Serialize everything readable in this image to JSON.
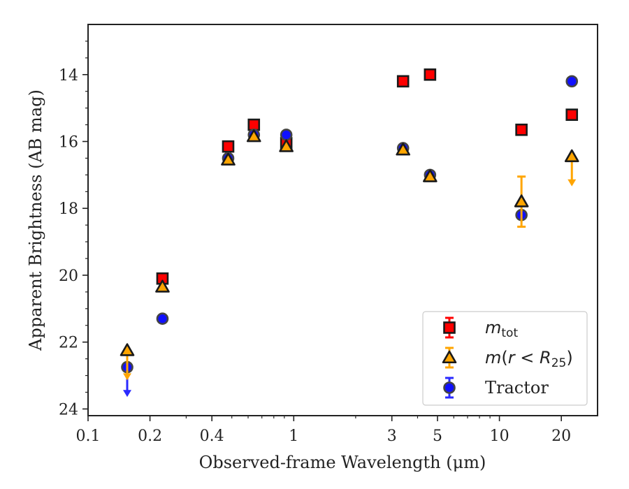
{
  "chart_data": {
    "type": "scatter",
    "xlabel": "Observed-frame Wavelength (μm)",
    "ylabel": "Apparent Brightness (AB mag)",
    "xscale": "log",
    "xlim": [
      0.1,
      30
    ],
    "ylim": [
      24.2,
      12.5
    ],
    "y_inverted": true,
    "xticks": [
      {
        "value": 0.1,
        "label": "0.1"
      },
      {
        "value": 0.2,
        "label": "0.2"
      },
      {
        "value": 0.4,
        "label": "0.4"
      },
      {
        "value": 1,
        "label": "1"
      },
      {
        "value": 3,
        "label": "3"
      },
      {
        "value": 5,
        "label": "5"
      },
      {
        "value": 10,
        "label": "10"
      },
      {
        "value": 20,
        "label": "20"
      }
    ],
    "yticks": [
      {
        "value": 14,
        "label": "14"
      },
      {
        "value": 16,
        "label": "16"
      },
      {
        "value": 18,
        "label": "18"
      },
      {
        "value": 20,
        "label": "20"
      },
      {
        "value": 22,
        "label": "22"
      },
      {
        "value": 24,
        "label": "24"
      }
    ],
    "legend_position": "lower-right",
    "grid": false,
    "series": [
      {
        "label": "m_tot",
        "marker": "square",
        "color": "#ff0000",
        "edge_color": "#1a1a1a",
        "points": [
          {
            "x": 0.23,
            "y": 20.1
          },
          {
            "x": 0.48,
            "y": 16.15
          },
          {
            "x": 0.64,
            "y": 15.5
          },
          {
            "x": 0.92,
            "y": 16.05
          },
          {
            "x": 3.4,
            "y": 14.2
          },
          {
            "x": 4.6,
            "y": 14.0
          },
          {
            "x": 12.8,
            "y": 15.65
          },
          {
            "x": 22.5,
            "y": 15.2
          }
        ]
      },
      {
        "label": "m(r<R25)",
        "marker": "triangle",
        "color": "#ffa500",
        "edge_color": "#1a1a1a",
        "points": [
          {
            "x": 0.155,
            "y": 22.25,
            "upper_limit": true,
            "arrow_to": 23.1
          },
          {
            "x": 0.23,
            "y": 20.35
          },
          {
            "x": 0.48,
            "y": 16.55
          },
          {
            "x": 0.64,
            "y": 15.85
          },
          {
            "x": 0.92,
            "y": 16.15
          },
          {
            "x": 3.4,
            "y": 16.25
          },
          {
            "x": 4.6,
            "y": 17.05
          },
          {
            "x": 12.8,
            "y": 17.8,
            "err": 0.75
          },
          {
            "x": 22.5,
            "y": 16.45,
            "upper_limit": true,
            "arrow_to": 17.3
          }
        ]
      },
      {
        "label": "Tractor",
        "marker": "circle",
        "color": "#1010ff",
        "edge_color": "#444444",
        "points": [
          {
            "x": 0.155,
            "y": 22.75,
            "upper_limit": true,
            "arrow_to": 23.6
          },
          {
            "x": 0.23,
            "y": 21.3
          },
          {
            "x": 0.48,
            "y": 16.5
          },
          {
            "x": 0.64,
            "y": 15.8
          },
          {
            "x": 0.92,
            "y": 15.8
          },
          {
            "x": 3.4,
            "y": 16.2
          },
          {
            "x": 4.6,
            "y": 17.0
          },
          {
            "x": 12.8,
            "y": 18.2
          },
          {
            "x": 22.5,
            "y": 14.2
          }
        ]
      }
    ]
  }
}
